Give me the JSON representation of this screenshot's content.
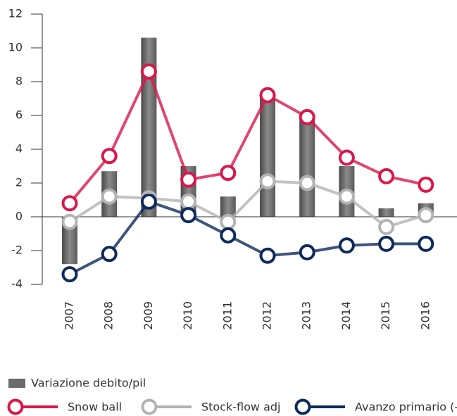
{
  "chart_data": {
    "type": "combo",
    "categories": [
      "2007",
      "2008",
      "2009",
      "2010",
      "2011",
      "2012",
      "2013",
      "2014",
      "2015",
      "2016"
    ],
    "series": [
      {
        "name": "Variazione debito/pil",
        "type": "bar",
        "color": "#6b6b6b",
        "values": [
          -2.8,
          2.7,
          10.6,
          3.0,
          1.2,
          7.1,
          5.8,
          3.0,
          0.5,
          0.8
        ]
      },
      {
        "name": "Snow ball",
        "type": "line",
        "color": "#d9174a",
        "values": [
          0.8,
          3.6,
          8.6,
          2.2,
          2.6,
          7.2,
          5.9,
          3.5,
          2.4,
          1.9
        ]
      },
      {
        "name": "Stock-flow adj",
        "type": "line",
        "color": "#b3b3b3",
        "values": [
          -0.3,
          1.2,
          1.1,
          0.9,
          -0.3,
          2.1,
          2.0,
          1.2,
          -0.6,
          0.1
        ]
      },
      {
        "name": "Avanzo primario (-)",
        "type": "line",
        "color": "#0d2a5c",
        "values": [
          -3.4,
          -2.2,
          0.9,
          0.1,
          -1.1,
          -2.3,
          -2.1,
          -1.7,
          -1.6,
          -1.6
        ]
      }
    ],
    "ylim": [
      -4,
      12
    ],
    "yticks": [
      -4,
      -2,
      0,
      2,
      4,
      6,
      8,
      10,
      12
    ],
    "grid": false
  }
}
